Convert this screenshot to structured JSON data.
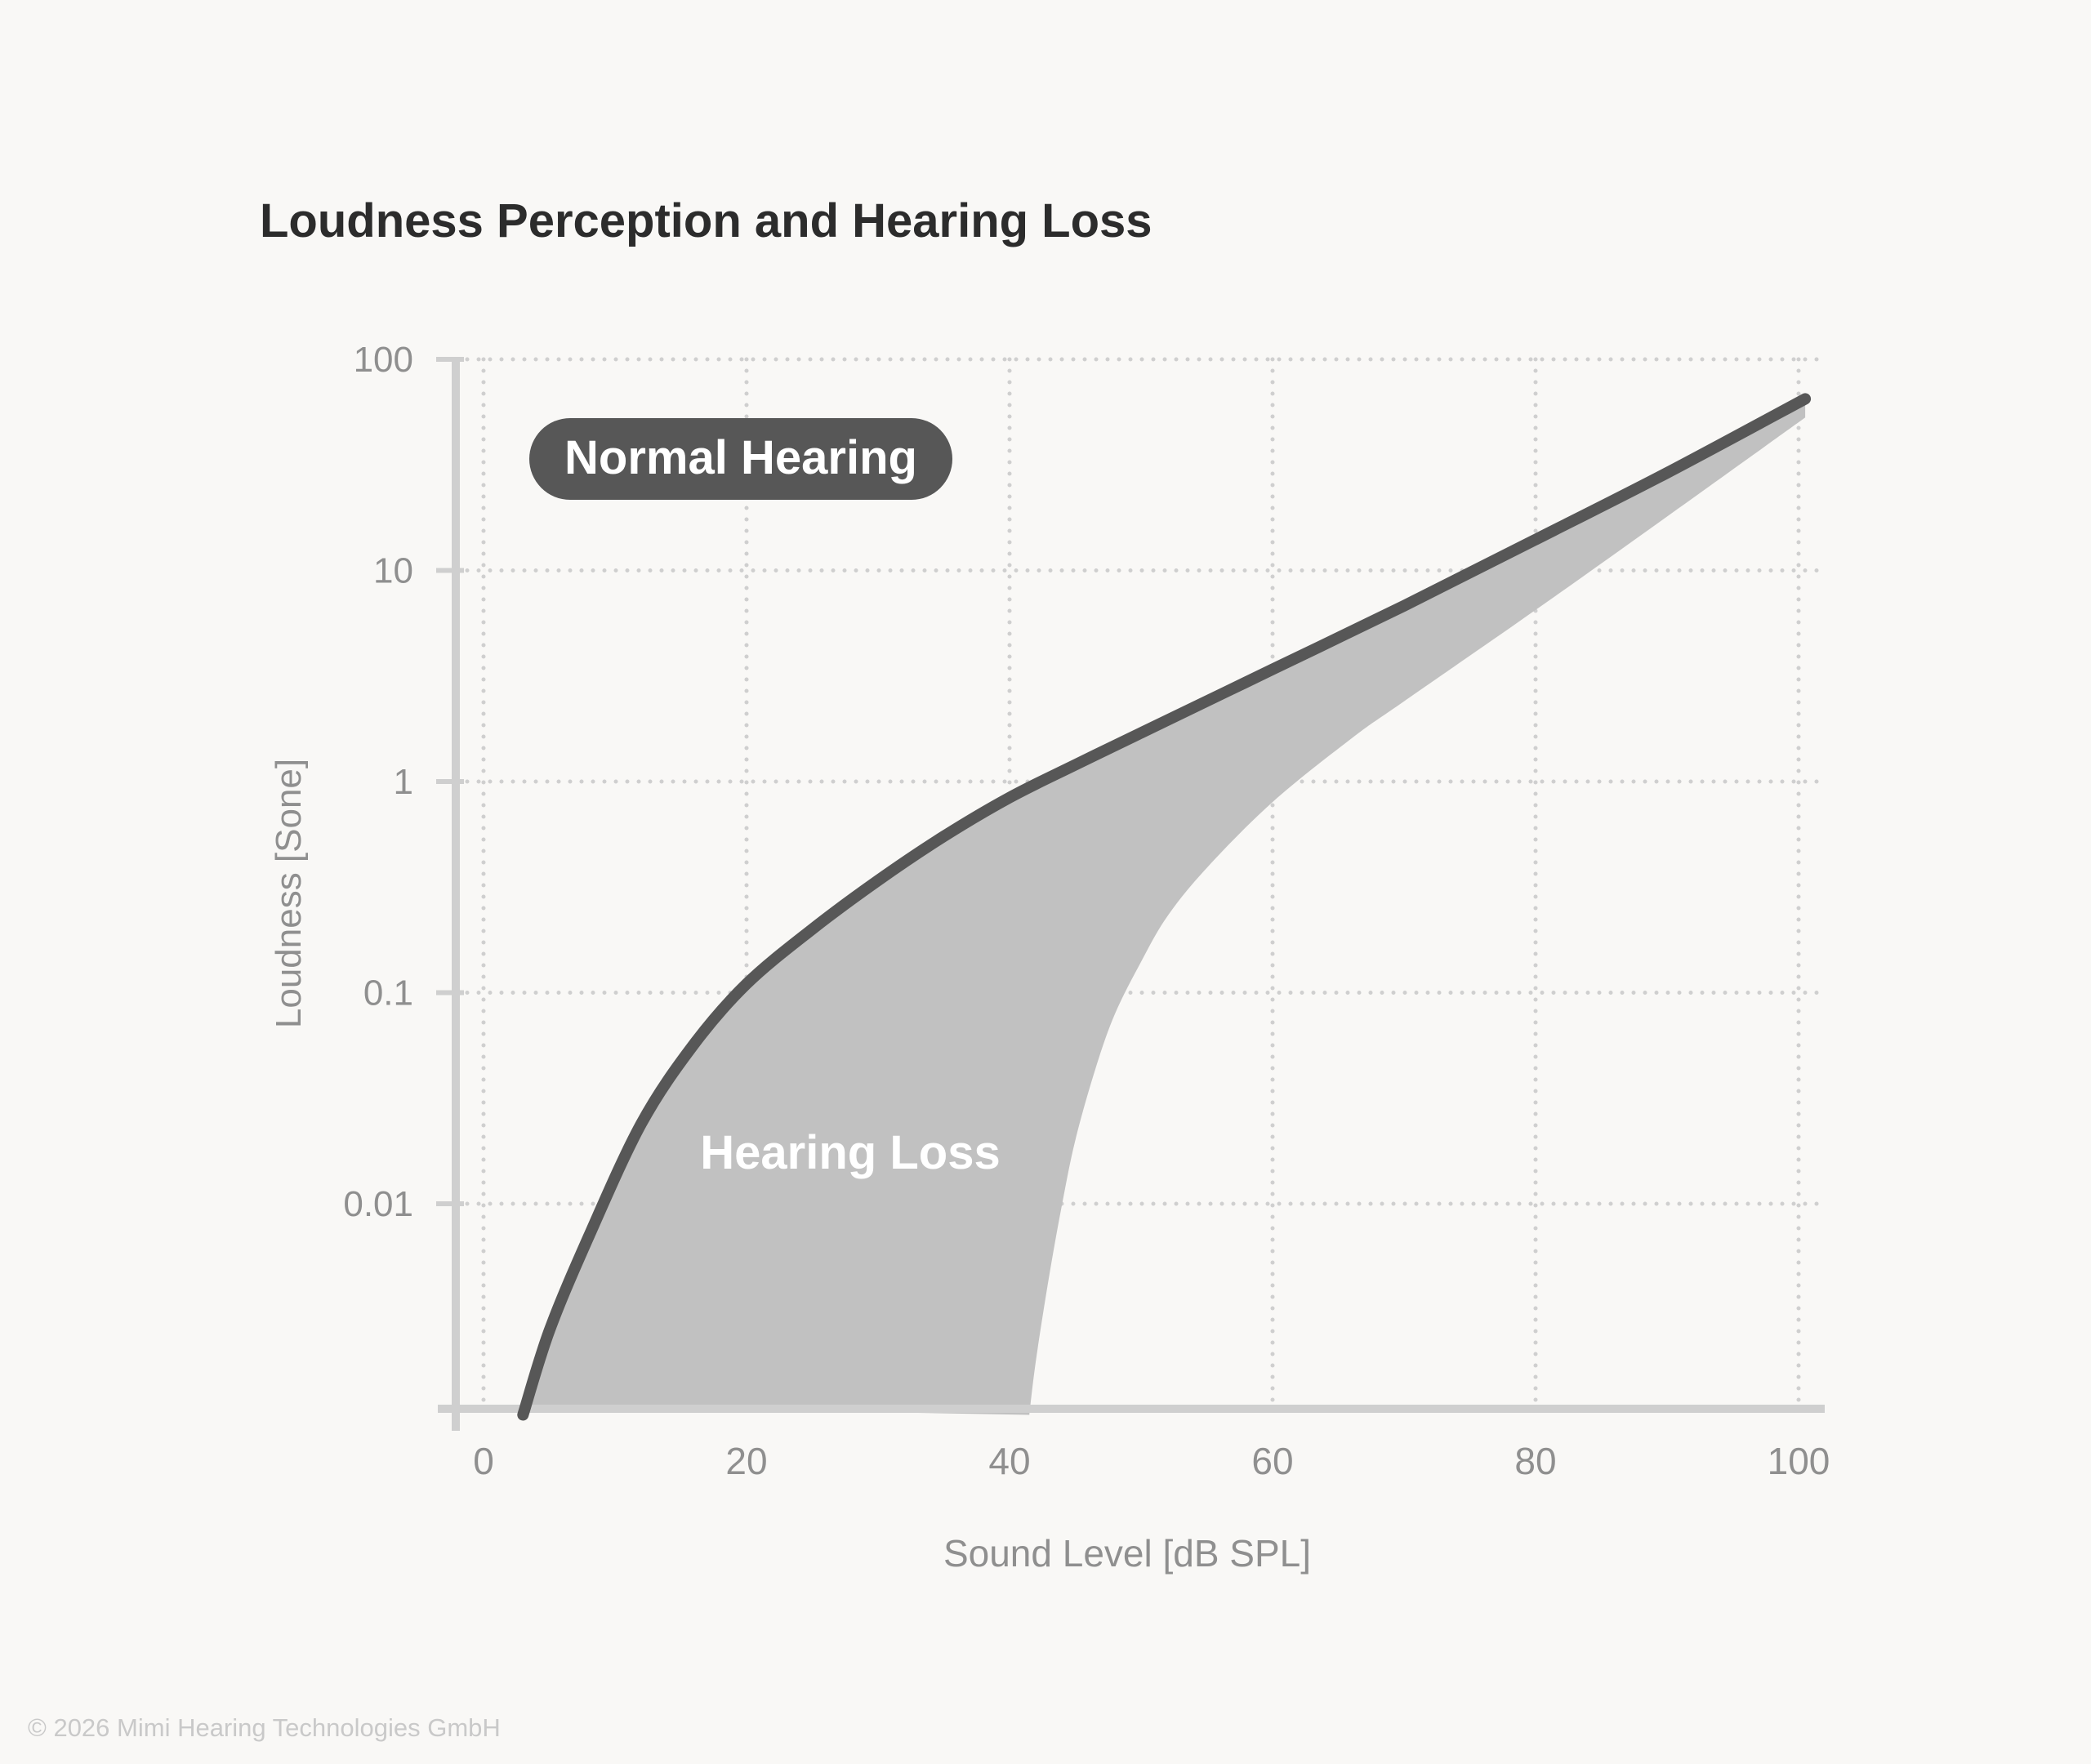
{
  "chart_data": {
    "type": "area",
    "title": "Loudness Perception and Hearing Loss",
    "xlabel": "Sound Level [dB SPL]",
    "ylabel": "Loudness [Sone]",
    "x_ticks": [
      "0",
      "20",
      "40",
      "60",
      "80",
      "100"
    ],
    "x_tick_values": [
      0,
      20,
      40,
      60,
      80,
      100
    ],
    "y_ticks": [
      "100",
      "10",
      "1",
      "0.1",
      "0.01"
    ],
    "y_tick_values": [
      100,
      10,
      1,
      0.1,
      0.01
    ],
    "xlim": [
      -2.5,
      102
    ],
    "ylim": [
      0.001,
      100
    ],
    "y_scale": "log",
    "grid": true,
    "series": [
      {
        "name": "Normal Hearing",
        "style": "line",
        "color": "#575757",
        "x": [
          3,
          5,
          8,
          12,
          16,
          20,
          25,
          30,
          35,
          40,
          45,
          50,
          60,
          70,
          80,
          90,
          100.5
        ],
        "y": [
          0.001,
          0.0025,
          0.007,
          0.024,
          0.057,
          0.11,
          0.2,
          0.34,
          0.55,
          0.84,
          1.2,
          1.7,
          3.4,
          6.8,
          14,
          29,
          65
        ]
      },
      {
        "name": "Hearing Loss",
        "style": "band",
        "color": "#c1c1c1",
        "x": [
          41.5,
          42,
          43,
          44,
          45,
          46.5,
          48,
          50,
          52,
          55,
          60,
          66,
          70,
          80,
          90,
          100.5
        ],
        "y": [
          0.001,
          0.0018,
          0.0045,
          0.01,
          0.02,
          0.043,
          0.079,
          0.14,
          0.23,
          0.39,
          0.8,
          1.6,
          2.4,
          6.5,
          18,
          53
        ]
      }
    ],
    "annotations": [
      "Normal Hearing",
      "Hearing Loss"
    ]
  },
  "footer": {
    "copyright": "© 2026 Mimi Hearing Technologies GmbH"
  }
}
